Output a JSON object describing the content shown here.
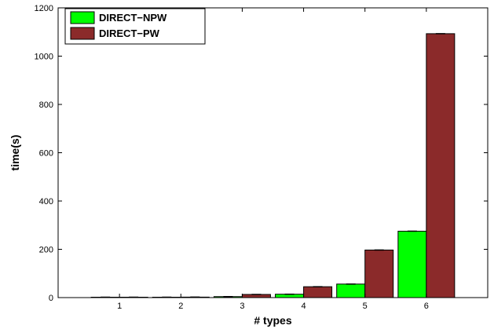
{
  "chart_data": {
    "type": "bar",
    "categories": [
      "1",
      "2",
      "3",
      "4",
      "5",
      "6"
    ],
    "series": [
      {
        "name": "DIRECT−NPW",
        "color": "#00ff00",
        "values": [
          0.5,
          0.8,
          4,
          14,
          56,
          275
        ]
      },
      {
        "name": "DIRECT−PW",
        "color": "#8b2a2a",
        "values": [
          1,
          2,
          13,
          45,
          197,
          1093
        ]
      }
    ],
    "xlabel": "# types",
    "ylabel": "time(s)",
    "ylim": [
      0,
      1200
    ],
    "yticks": [
      0,
      200,
      400,
      600,
      800,
      1000,
      1200
    ],
    "legend_position": "top-left",
    "grid": false,
    "error_bars": true
  }
}
